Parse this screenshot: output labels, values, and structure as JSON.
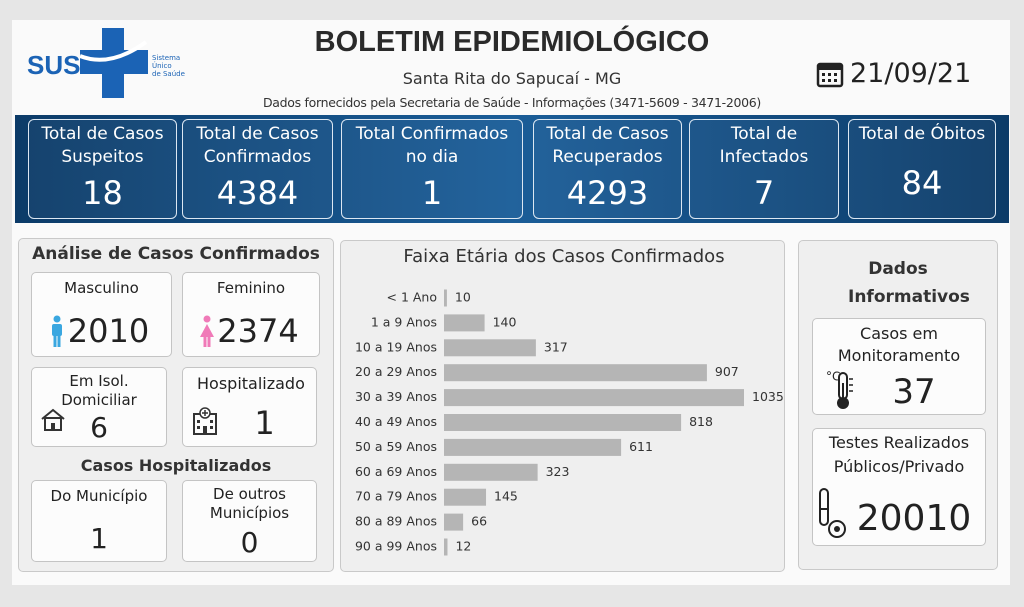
{
  "header": {
    "logo_text": "SUS",
    "logo_caption": [
      "Sistema",
      "Único",
      "de Saúde"
    ],
    "title": "BOLETIM EPIDEMIOLÓGICO",
    "subtitle": "Santa Rita do Sapucaí - MG",
    "source": "Dados fornecidos pela Secretaria de Saúde - Informações (3471-5609 - 3471-2006)",
    "date": "21/09/21"
  },
  "kpis": [
    {
      "label": "Total de Casos Suspeitos",
      "value": 18
    },
    {
      "label": "Total de Casos Confirmados",
      "value": 4384
    },
    {
      "label": "Total Confirmados no dia",
      "value": 1
    },
    {
      "label": "Total de Casos Recuperados",
      "value": 4293
    },
    {
      "label": "Total de Infectados",
      "value": 7
    },
    {
      "label": "Total de Óbitos",
      "value": 84
    }
  ],
  "analysis": {
    "title": "Análise de Casos Confirmados",
    "cards": [
      {
        "label": "Masculino",
        "value": 2010
      },
      {
        "label": "Feminino",
        "value": 2374
      },
      {
        "label": "Em Isol. Domiciliar",
        "value": 6
      },
      {
        "label": "Hospitalizado",
        "value": 1
      }
    ],
    "hospital_title": "Casos Hospitalizados",
    "hospital_cards": [
      {
        "label": "Do Município",
        "value": 1
      },
      {
        "label": "De outros Municípios",
        "value": 0
      }
    ]
  },
  "info": {
    "title": "Dados Informativos",
    "cards": [
      {
        "label": "Casos em Monitoramento",
        "value": 37
      },
      {
        "label": "Testes Realizados Públicos/Privado",
        "value": 20010
      }
    ]
  },
  "chart_data": {
    "type": "bar",
    "orientation": "horizontal",
    "title": "Faixa Etária dos Casos Confirmados",
    "categories": [
      "< 1 Ano",
      "1 a 9 Anos",
      "10 a 19 Anos",
      "20 a 29 Anos",
      "30 a 39 Anos",
      "40 a 49 Anos",
      "50 a 59 Anos",
      "60 a 69 Anos",
      "70 a 79 Anos",
      "80 a 89 Anos",
      "90 a 99 Anos"
    ],
    "values": [
      10,
      140,
      317,
      907,
      1035,
      818,
      611,
      323,
      145,
      66,
      12
    ],
    "color": "#b5b5b5"
  }
}
